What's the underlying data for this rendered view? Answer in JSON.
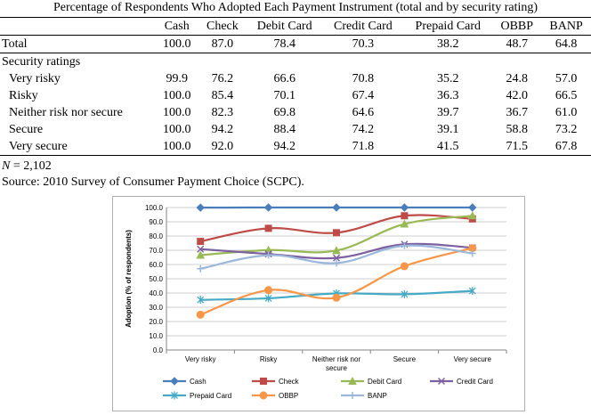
{
  "table": {
    "caption": "Percentage of Respondents Who Adopted Each Payment Instrument (total and by security rating)",
    "columns": [
      "Cash",
      "Check",
      "Debit Card",
      "Credit Card",
      "Prepaid Card",
      "OBBP",
      "BANP"
    ],
    "total": {
      "label": "Total",
      "values": [
        "100.0",
        "87.0",
        "78.4",
        "70.3",
        "38.2",
        "48.7",
        "64.8"
      ]
    },
    "section_label": "Security ratings",
    "rows": [
      {
        "label": "Very risky",
        "values": [
          "99.9",
          "76.2",
          "66.6",
          "70.8",
          "35.2",
          "24.8",
          "57.0"
        ]
      },
      {
        "label": "Risky",
        "values": [
          "100.0",
          "85.4",
          "70.1",
          "67.4",
          "36.3",
          "42.0",
          "66.5"
        ]
      },
      {
        "label": "Neither risk nor secure",
        "values": [
          "100.0",
          "82.3",
          "69.8",
          "64.6",
          "39.7",
          "36.7",
          "61.0"
        ]
      },
      {
        "label": "Secure",
        "values": [
          "100.0",
          "94.2",
          "88.4",
          "74.2",
          "39.1",
          "58.8",
          "73.2"
        ]
      },
      {
        "label": "Very secure",
        "values": [
          "100.0",
          "92.0",
          "94.2",
          "71.8",
          "41.5",
          "71.5",
          "67.8"
        ]
      }
    ]
  },
  "note": {
    "n_symbol": "N",
    "n_value": " = 2,102"
  },
  "source": "Source: 2010 Survey of Consumer Payment Choice (SCPC).",
  "chart_data": {
    "type": "line",
    "title": "",
    "xlabel": "",
    "ylabel": "Adoption (% of respondents)",
    "ylim": [
      0,
      100
    ],
    "yticks": [
      "0.0",
      "10.0",
      "20.0",
      "30.0",
      "40.0",
      "50.0",
      "60.0",
      "70.0",
      "80.0",
      "90.0",
      "100.0"
    ],
    "categories": [
      "Very risky",
      "Risky",
      "Neither risk nor secure",
      "Secure",
      "Very secure"
    ],
    "category_lines": [
      [
        "Very risky"
      ],
      [
        "Risky"
      ],
      [
        "Neither risk nor",
        "secure"
      ],
      [
        "Secure"
      ],
      [
        "Very secure"
      ]
    ],
    "grid": true,
    "legend_position": "bottom",
    "series": [
      {
        "name": "Cash",
        "color": "#4a7ebb",
        "marker": "diamond",
        "values": [
          99.9,
          100.0,
          100.0,
          100.0,
          100.0
        ]
      },
      {
        "name": "Check",
        "color": "#be4b48",
        "marker": "square",
        "values": [
          76.2,
          85.4,
          82.3,
          94.2,
          92.0
        ]
      },
      {
        "name": "Debit Card",
        "color": "#98b954",
        "marker": "triangle",
        "values": [
          66.6,
          70.1,
          69.8,
          88.4,
          94.2
        ]
      },
      {
        "name": "Credit Card",
        "color": "#7d60a0",
        "marker": "x",
        "values": [
          70.8,
          67.4,
          64.6,
          74.2,
          71.8
        ]
      },
      {
        "name": "Prepaid Card",
        "color": "#46aac5",
        "marker": "star",
        "values": [
          35.2,
          36.3,
          39.7,
          39.1,
          41.5
        ]
      },
      {
        "name": "OBBP",
        "color": "#f79646",
        "marker": "circle",
        "values": [
          24.8,
          42.0,
          36.7,
          58.8,
          71.5
        ]
      },
      {
        "name": "BANP",
        "color": "#9bb7dc",
        "marker": "plus",
        "values": [
          57.0,
          66.5,
          61.0,
          73.2,
          67.8
        ]
      }
    ]
  }
}
